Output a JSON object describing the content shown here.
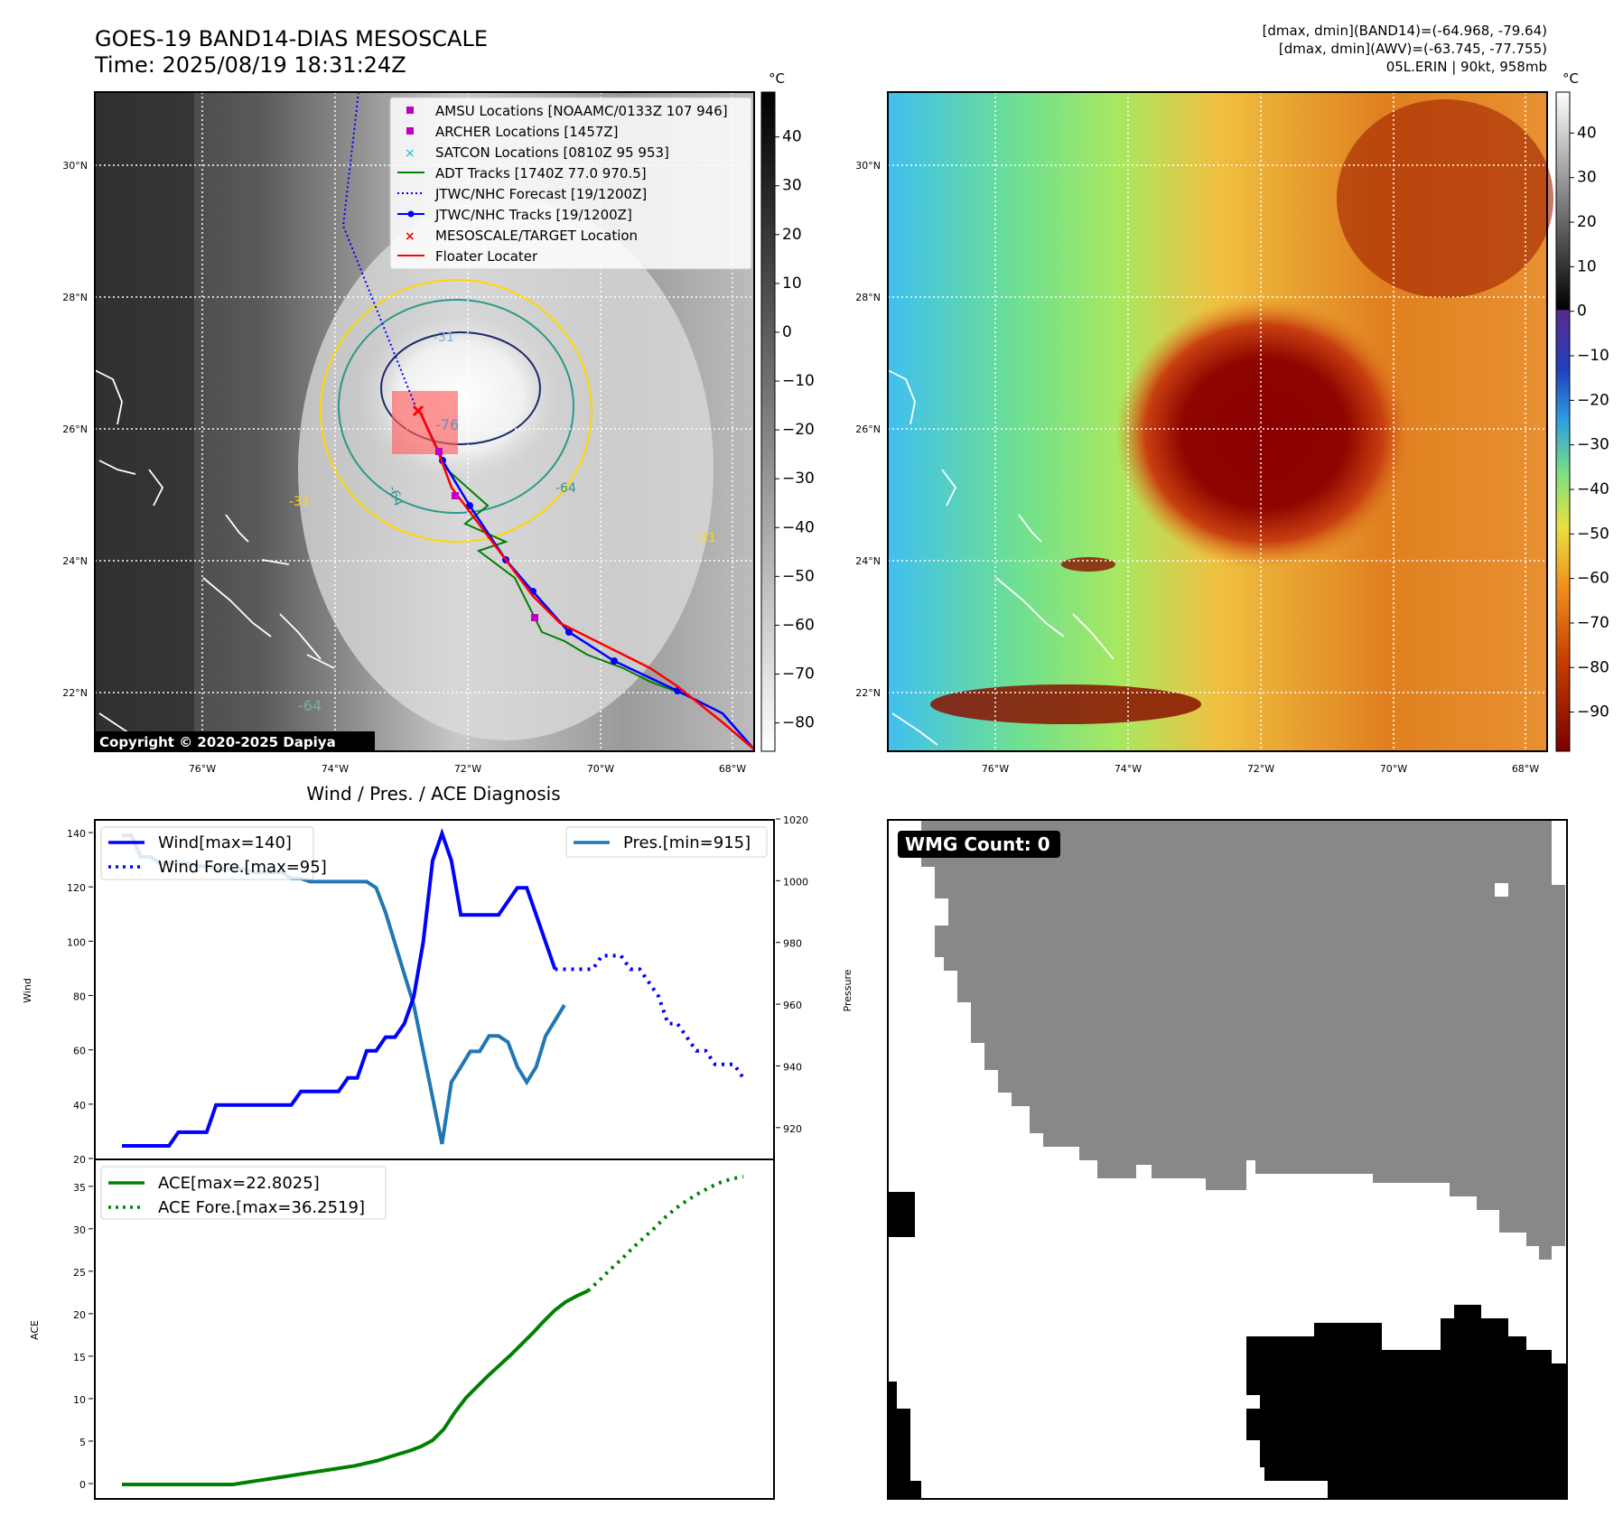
{
  "header": {
    "title_line1": "GOES-19 BAND14-DIAS MESOSCALE",
    "title_line2": "Time: 2025/08/19 18:31:24Z",
    "info_line1": "[dmax, dmin](BAND14)=(-64.968, -79.64)",
    "info_line2": "[dmax, dmin](AWV)=(-63.745, -77.755)",
    "info_line3": "05L.ERIN | 90kt, 958mb"
  },
  "copyright": "Copyright © 2020-2025 Dapiya",
  "map": {
    "lat_labels": [
      "30°N",
      "28°N",
      "26°N",
      "24°N",
      "22°N"
    ],
    "lon_labels": [
      "76°W",
      "74°W",
      "72°W",
      "70°W",
      "68°W"
    ],
    "contour_labels": [
      "-31",
      "-64",
      "-76",
      "-64",
      "-31",
      "-31",
      "-64"
    ],
    "legend": [
      "AMSU Locations [NOAAMC/0133Z 107 946]",
      "ARCHER Locations [1457Z]",
      "SATCON Locations [0810Z 95 953]",
      "ADT Tracks [1740Z 77.0 970.5]",
      "JTWC/NHC Forecast [19/1200Z]",
      "JTWC/NHC Tracks [19/1200Z]",
      "MESOSCALE/TARGET Location",
      "Floater Locater"
    ],
    "colors": {
      "amsu": "#bf00bf",
      "archer": "#bf00bf",
      "satcon": "#17becf",
      "adt": "#008000",
      "jtwc_forecast": "#0000ff",
      "jtwc_track": "#0000ff",
      "target": "#ff0000",
      "floater": "#ff0000"
    }
  },
  "colorbar_left": {
    "unit": "°C",
    "ticks": [
      "40",
      "30",
      "20",
      "10",
      "0",
      "−10",
      "−20",
      "−30",
      "−40",
      "−50",
      "−60",
      "−70",
      "−80"
    ]
  },
  "colorbar_right": {
    "unit": "°C",
    "ticks": [
      "40",
      "30",
      "20",
      "10",
      "0",
      "−10",
      "−20",
      "−30",
      "−40",
      "−50",
      "−60",
      "−70",
      "−80",
      "−90"
    ]
  },
  "wmg": {
    "label": "WMG Count: 0"
  },
  "chart_data": [
    {
      "type": "line",
      "title": "Wind / Pres. / ACE Diagnosis",
      "ylabel": "Wind",
      "y2label": "Pressure",
      "ylim": [
        20,
        145
      ],
      "y2lim": [
        910,
        1020
      ],
      "yticks": [
        "140",
        "120",
        "100",
        "80",
        "60",
        "40",
        "20"
      ],
      "y2ticks": [
        "1020",
        "1000",
        "980",
        "960",
        "940",
        "920"
      ],
      "series": [
        {
          "name": "Wind[max=140]",
          "color": "#0000ff",
          "values": [
            25,
            25,
            25,
            25,
            25,
            25,
            30,
            30,
            30,
            30,
            40,
            40,
            40,
            40,
            40,
            40,
            40,
            40,
            40,
            45,
            45,
            45,
            45,
            45,
            50,
            50,
            60,
            60,
            65,
            65,
            70,
            80,
            100,
            130,
            140,
            130,
            110,
            110,
            110,
            110,
            110,
            115,
            120,
            120,
            110,
            100,
            90
          ]
        },
        {
          "name": "Wind Fore.[max=95]",
          "color": "#0000ff",
          "values": [
            90,
            90,
            90,
            90,
            90,
            95,
            95,
            95,
            90,
            90,
            85,
            80,
            70,
            70,
            65,
            60,
            60,
            55,
            55,
            55,
            50
          ]
        },
        {
          "name": "Pres.[min=915]",
          "color": "#1f77b4",
          "values": [
            1015,
            1015,
            1008,
            1008,
            1006,
            1006,
            1006,
            1006,
            1005,
            1005,
            1004,
            1004,
            1004,
            1004,
            1003,
            1003,
            1003,
            1003,
            1001,
            1001,
            1000,
            1000,
            1000,
            1000,
            1000,
            1000,
            1000,
            998,
            990,
            980,
            970,
            960,
            945,
            930,
            915,
            935,
            940,
            945,
            945,
            950,
            950,
            948,
            940,
            935,
            940,
            950,
            955,
            960
          ]
        }
      ]
    },
    {
      "type": "line",
      "ylabel": "ACE",
      "ylim": [
        0,
        37
      ],
      "yticks": [
        "35",
        "30",
        "25",
        "20",
        "15",
        "10",
        "5",
        "0"
      ],
      "series": [
        {
          "name": "ACE[max=22.8025]",
          "color": "#008000",
          "values": [
            0,
            0,
            0,
            0,
            0,
            0,
            0,
            0,
            0,
            0,
            0,
            0.2,
            0.4,
            0.6,
            0.8,
            1.0,
            1.2,
            1.4,
            1.6,
            1.8,
            2.0,
            2.2,
            2.5,
            2.8,
            3.2,
            3.6,
            4.0,
            4.5,
            5.2,
            6.5,
            8.5,
            10.2,
            11.5,
            12.8,
            14.0,
            15.2,
            16.5,
            17.8,
            19.2,
            20.5,
            21.5,
            22.2,
            22.8
          ]
        },
        {
          "name": "ACE Fore.[max=36.2519]",
          "color": "#008000",
          "values": [
            22.8,
            24.0,
            25.3,
            26.5,
            27.8,
            29.0,
            30.2,
            31.5,
            32.6,
            33.5,
            34.3,
            35.0,
            35.6,
            36.0,
            36.25
          ]
        }
      ]
    }
  ]
}
